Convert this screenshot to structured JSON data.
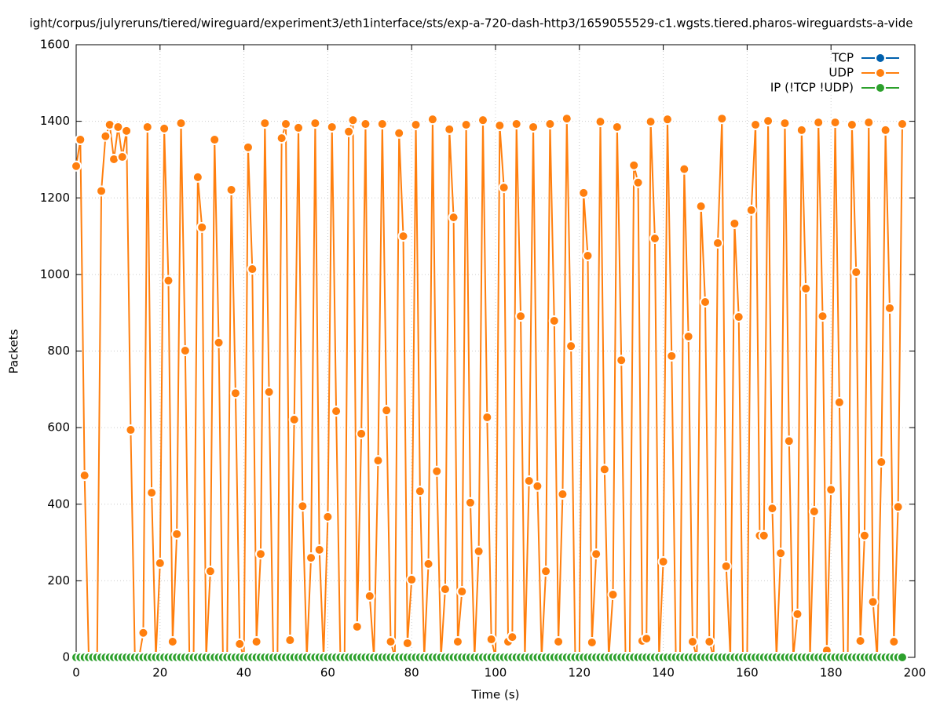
{
  "chart_data": {
    "type": "line",
    "title": "ight/corpus/julyreruns/tiered/wireguard/experiment3/eth1interface/sts/exp-a-720-dash-http3/1659055529-c1.wgsts.tiered.pharos-wireguardsts-a-vide",
    "xlabel": "Time (s)",
    "ylabel": "Packets",
    "x": [
      0,
      1,
      2,
      3,
      4,
      5,
      6,
      7,
      8,
      9,
      10,
      11,
      12,
      13,
      14,
      15,
      16,
      17,
      18,
      19,
      20,
      21,
      22,
      23,
      24,
      25,
      26,
      27,
      28,
      29,
      30,
      31,
      32,
      33,
      34,
      35,
      36,
      37,
      38,
      39,
      40,
      41,
      42,
      43,
      44,
      45,
      46,
      47,
      48,
      49,
      50,
      51,
      52,
      53,
      54,
      55,
      56,
      57,
      58,
      59,
      60,
      61,
      62,
      63,
      64,
      65,
      66,
      67,
      68,
      69,
      70,
      71,
      72,
      73,
      74,
      75,
      76,
      77,
      78,
      79,
      80,
      81,
      82,
      83,
      84,
      85,
      86,
      87,
      88,
      89,
      90,
      91,
      92,
      93,
      94,
      95,
      96,
      97,
      98,
      99,
      100,
      101,
      102,
      103,
      104,
      105,
      106,
      107,
      108,
      109,
      110,
      111,
      112,
      113,
      114,
      115,
      116,
      117,
      118,
      119,
      120,
      121,
      122,
      123,
      124,
      125,
      126,
      127,
      128,
      129,
      130,
      131,
      132,
      133,
      134,
      135,
      136,
      137,
      138,
      139,
      140,
      141,
      142,
      143,
      144,
      145,
      146,
      147,
      148,
      149,
      150,
      151,
      152,
      153,
      154,
      155,
      156,
      157,
      158,
      159,
      160,
      161,
      162,
      163,
      164,
      165,
      166,
      167,
      168,
      169,
      170,
      171,
      172,
      173,
      174,
      175,
      176,
      177,
      178,
      179,
      180,
      181,
      182,
      183,
      184,
      185,
      186,
      187,
      188,
      189,
      190,
      191,
      192,
      193,
      194,
      195,
      196,
      197
    ],
    "series": [
      {
        "name": "TCP",
        "color": "#0060ad",
        "values": [
          0,
          0,
          0,
          0,
          0,
          0,
          0,
          0,
          0,
          0,
          0,
          0,
          0,
          0,
          0,
          0,
          0,
          0,
          0,
          0,
          0,
          0,
          0,
          0,
          0,
          0,
          0,
          0,
          0,
          0,
          0,
          0,
          0,
          0,
          0,
          0,
          0,
          0,
          0,
          0,
          0,
          0,
          0,
          0,
          0,
          0,
          0,
          0,
          0,
          0,
          0,
          0,
          0,
          0,
          0,
          0,
          0,
          0,
          0,
          0,
          0,
          0,
          0,
          0,
          0,
          0,
          0,
          0,
          0,
          0,
          0,
          0,
          0,
          0,
          0,
          0,
          0,
          0,
          0,
          0,
          0,
          0,
          0,
          0,
          0,
          0,
          0,
          0,
          0,
          0,
          0,
          0,
          0,
          0,
          0,
          0,
          0,
          0,
          0,
          0,
          0,
          0,
          0,
          0,
          0,
          0,
          0,
          0,
          0,
          0,
          0,
          0,
          0,
          0,
          0,
          0,
          0,
          0,
          0,
          0,
          0,
          0,
          0,
          0,
          0,
          0,
          0,
          0,
          0,
          0,
          0,
          0,
          0,
          0,
          0,
          0,
          0,
          0,
          0,
          0,
          0,
          0,
          0,
          0,
          0,
          0,
          0,
          0,
          0,
          0,
          0,
          0,
          0,
          0,
          0,
          0,
          0,
          0,
          0,
          0,
          0,
          0,
          0,
          0,
          0,
          0,
          0,
          0,
          0,
          0,
          0,
          0,
          0,
          0,
          0,
          0,
          0,
          0,
          0,
          0,
          0,
          0,
          0,
          0,
          0,
          0,
          0,
          0,
          0,
          0,
          0,
          0,
          0,
          0,
          0,
          0,
          0,
          0
        ]
      },
      {
        "name": "UDP",
        "color": "#ff7f0e",
        "values": [
          1283,
          1352,
          475,
          0,
          0,
          0,
          1218,
          1361,
          1391,
          1301,
          1385,
          1307,
          1375,
          594,
          0,
          0,
          64,
          1385,
          430,
          0,
          246,
          1381,
          984,
          41,
          322,
          1395,
          801,
          0,
          0,
          1254,
          1123,
          0,
          225,
          1352,
          822,
          0,
          0,
          1221,
          690,
          35,
          0,
          1332,
          1014,
          41,
          270,
          1395,
          693,
          0,
          0,
          1356,
          1393,
          45,
          621,
          1383,
          395,
          0,
          260,
          1395,
          281,
          0,
          367,
          1385,
          643,
          0,
          0,
          1373,
          1403,
          80,
          584,
          1393,
          160,
          0,
          514,
          1393,
          645,
          41,
          0,
          1369,
          1100,
          37,
          203,
          1391,
          434,
          0,
          244,
          1405,
          486,
          0,
          178,
          1379,
          1149,
          41,
          172,
          1391,
          404,
          0,
          277,
          1403,
          627,
          47,
          0,
          1389,
          1227,
          41,
          53,
          1393,
          891,
          0,
          461,
          1385,
          447,
          0,
          225,
          1393,
          879,
          41,
          426,
          1407,
          813,
          0,
          0,
          1213,
          1049,
          39,
          270,
          1399,
          491,
          0,
          164,
          1385,
          776,
          0,
          0,
          1285,
          1240,
          43,
          49,
          1399,
          1094,
          0,
          250,
          1405,
          787,
          0,
          0,
          1275,
          838,
          41,
          0,
          1178,
          928,
          41,
          0,
          1082,
          1407,
          238,
          0,
          1133,
          889,
          0,
          0,
          1168,
          1391,
          318,
          318,
          1401,
          389,
          0,
          272,
          1395,
          565,
          0,
          113,
          1377,
          963,
          0,
          381,
          1397,
          891,
          18,
          438,
          1397,
          666,
          0,
          0,
          1391,
          1006,
          43,
          318,
          1397,
          145,
          0,
          510,
          1377,
          912,
          41,
          393,
          1393
        ]
      },
      {
        "name": "IP (!TCP  !UDP)",
        "color": "#2ca02c",
        "values": [
          0,
          0,
          0,
          0,
          0,
          0,
          0,
          0,
          0,
          0,
          0,
          0,
          0,
          0,
          0,
          0,
          0,
          0,
          0,
          0,
          0,
          0,
          0,
          0,
          0,
          0,
          0,
          0,
          0,
          0,
          0,
          0,
          0,
          0,
          0,
          0,
          0,
          0,
          0,
          0,
          0,
          0,
          0,
          0,
          0,
          0,
          0,
          0,
          0,
          0,
          0,
          0,
          0,
          0,
          0,
          0,
          0,
          0,
          0,
          0,
          0,
          0,
          0,
          0,
          0,
          0,
          0,
          0,
          0,
          0,
          0,
          0,
          0,
          0,
          0,
          0,
          0,
          0,
          0,
          0,
          0,
          0,
          0,
          0,
          0,
          0,
          0,
          0,
          0,
          0,
          0,
          0,
          0,
          0,
          0,
          0,
          0,
          0,
          0,
          0,
          0,
          0,
          0,
          0,
          0,
          0,
          0,
          0,
          0,
          0,
          0,
          0,
          0,
          0,
          0,
          0,
          0,
          0,
          0,
          0,
          0,
          0,
          0,
          0,
          0,
          0,
          0,
          0,
          0,
          0,
          0,
          0,
          0,
          0,
          0,
          0,
          0,
          0,
          0,
          0,
          0,
          0,
          0,
          0,
          0,
          0,
          0,
          0,
          0,
          0,
          0,
          0,
          0,
          0,
          0,
          0,
          0,
          0,
          0,
          0,
          0,
          0,
          0,
          0,
          0,
          0,
          0,
          0,
          0,
          0,
          0,
          0,
          0,
          0,
          0,
          0,
          0,
          0,
          0,
          0,
          0,
          0,
          0,
          0,
          0,
          0,
          0,
          0,
          0,
          0,
          0,
          0,
          0,
          0,
          0,
          0,
          0,
          0
        ]
      }
    ],
    "xlim": [
      0,
      200
    ],
    "xticks": [
      0,
      20,
      40,
      60,
      80,
      100,
      120,
      140,
      160,
      180,
      200
    ],
    "ylim": [
      0,
      1600
    ],
    "yticks": [
      0,
      200,
      400,
      600,
      800,
      1000,
      1200,
      1400,
      1600
    ],
    "grid": true,
    "legend": "top-right"
  }
}
